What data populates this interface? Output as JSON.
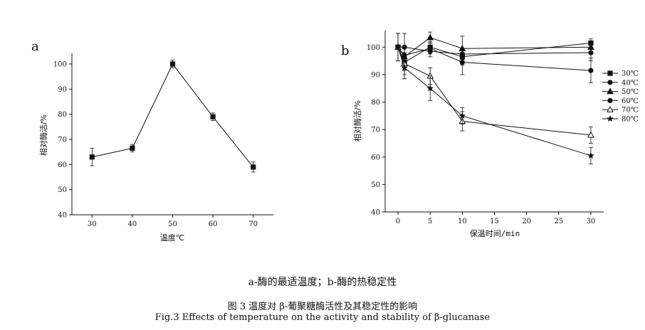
{
  "captions": {
    "subtitle": "a-酶的最适温度；b-酶的热稳定性",
    "figure_cn": "图 3  温度对 β-葡聚糖酶活性及其稳定性的影响",
    "figure_en": "Fig.3 Effects of temperature on the activity and stability of β-glucanase"
  },
  "chart_data": [
    {
      "panel": "a",
      "type": "line",
      "xlabel": "温度℃",
      "ylabel": "相对酶活/%",
      "xlim": [
        25,
        75
      ],
      "ylim": [
        40,
        100
      ],
      "xticks": [
        30,
        40,
        50,
        60,
        70
      ],
      "yticks": [
        40,
        50,
        60,
        70,
        80,
        90,
        100
      ],
      "grid": false,
      "series": [
        {
          "marker": "square",
          "x": [
            30,
            40,
            50,
            60,
            70
          ],
          "y": [
            63,
            66.5,
            100,
            79,
            59
          ],
          "err": [
            3.5,
            1.5,
            1.5,
            1.5,
            2
          ]
        }
      ]
    },
    {
      "panel": "b",
      "type": "line",
      "xlabel": "保温时间/min",
      "ylabel": "相对酶活/%",
      "xlim": [
        -2,
        32
      ],
      "ylim": [
        40,
        105
      ],
      "xticks": [
        0,
        5,
        10,
        15,
        20,
        25,
        30
      ],
      "yticks": [
        40,
        50,
        60,
        70,
        80,
        90,
        100
      ],
      "grid": false,
      "legend": "right",
      "series": [
        {
          "name": "30℃",
          "marker": "square",
          "x": [
            0,
            1,
            5,
            10,
            30
          ],
          "y": [
            100,
            94.5,
            100,
            96.5,
            101.5
          ],
          "err": [
            5,
            3,
            2,
            3,
            1.5
          ]
        },
        {
          "name": "40℃",
          "marker": "circle",
          "x": [
            0,
            1,
            5,
            10,
            30
          ],
          "y": [
            100,
            100,
            98.5,
            97.5,
            98
          ],
          "err": [
            5,
            5,
            2,
            2,
            3
          ]
        },
        {
          "name": "50℃",
          "marker": "triangle",
          "x": [
            0,
            1,
            5,
            10,
            30
          ],
          "y": [
            100,
            96.5,
            103.5,
            99.5,
            100
          ],
          "err": [
            5,
            3,
            2,
            4.5,
            2
          ]
        },
        {
          "name": "60℃",
          "marker": "circle",
          "x": [
            0,
            1,
            5,
            10,
            30
          ],
          "y": [
            100,
            97,
            99.5,
            94.5,
            91.5
          ],
          "err": [
            5,
            3,
            2,
            4.5,
            4.5
          ]
        },
        {
          "name": "70℃",
          "marker": "triangle-open",
          "x": [
            0,
            1,
            5,
            10,
            30
          ],
          "y": [
            100,
            94,
            89.5,
            73,
            68
          ],
          "err": [
            5,
            4,
            3,
            3.5,
            3
          ]
        },
        {
          "name": "80℃",
          "marker": "star",
          "x": [
            0,
            1,
            5,
            10,
            30
          ],
          "y": [
            100,
            92.5,
            85,
            75,
            60.5
          ],
          "err": [
            5,
            4,
            4.5,
            3,
            3
          ]
        }
      ]
    }
  ]
}
